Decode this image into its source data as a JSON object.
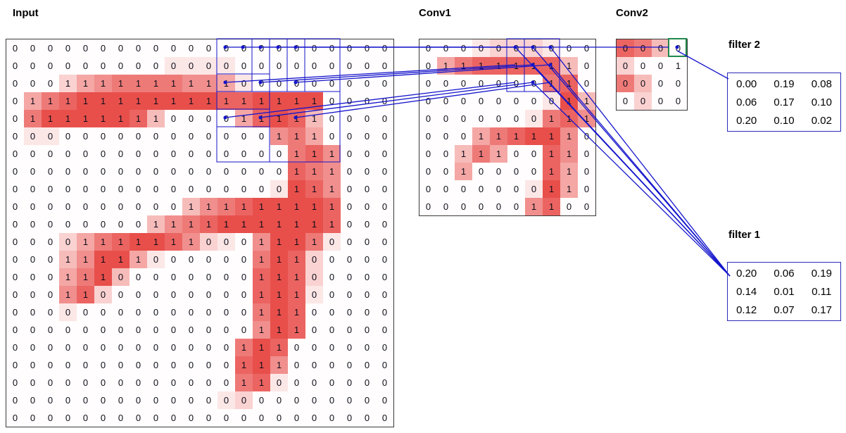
{
  "colors": {
    "accent_blue": "#1414cc",
    "cell_red_rgb": "229,57,53",
    "green_highlight": "#1f8a4c",
    "grid_border": "#3a3a3a"
  },
  "panels": {
    "input": {
      "title": "Input",
      "rows": [
        "0000000000000000000000",
        "0000000000000000000000",
        "0001111111111000000000",
        "0111111111111111110000",
        "0111111110000111110000",
        "0000000000000001110000",
        "0000000000000000111000",
        "0000000000000000111000",
        "0000000000000000111000",
        "0000000000111111111000",
        "0000000011111111111000",
        "0000111111100011110000",
        "0001111100000011100000",
        "0001110000000011100000",
        "0001100000000011100000",
        "0000000000000011100000",
        "0000000000000011100000",
        "0000000000000111000000",
        "0000000000000111000000",
        "0000000000000110000000",
        "0000000000000000000000",
        "0000000000000000000000"
      ],
      "intensity": [
        "0000000000000000000000",
        "0000000001111000000000",
        "0002456666554100000000",
        "0467888888887788880000",
        "0688888730000478730000",
        "0110000000000005640000",
        "0000000000000000675000",
        "0000000000000000765000",
        "0000000000000001875000",
        "0000000000356788887000",
        "0000000035678888887000",
        "0002467887521058861000",
        "0003588410000068720000",
        "0004683000000078720000",
        "0005720000000078710000",
        "0001000000000068700000",
        "0000000000000058700000",
        "0000000000000687000000",
        "0000000000000785000000",
        "0000000000000671000000",
        "0000000000001200000000",
        "0000000000000000000000"
      ]
    },
    "conv1": {
      "title": "Conv1",
      "rows": [
        "0000000000",
        "0111111110",
        "0000000110",
        "0000000011",
        "0000000111",
        "0001111110",
        "0011100110",
        "0010000110",
        "0000000110",
        "0000001100"
      ],
      "intensity": [
        "0001222100",
        "0467777730",
        "0000000670",
        "0000000183",
        "0000001675",
        "0004678850",
        "0036400750",
        "0040000740",
        "0000001840",
        "0000005700"
      ]
    },
    "conv2": {
      "title": "Conv2",
      "rows": [
        "0000",
        "0001",
        "0000",
        "0000"
      ],
      "intensity": [
        "7630",
        "2000",
        "6300",
        "0200"
      ]
    }
  },
  "filters": {
    "filter2": {
      "label": "filter 2",
      "values": [
        [
          "0.00",
          "0.19",
          "0.08"
        ],
        [
          "0.06",
          "0.17",
          "0.10"
        ],
        [
          "0.20",
          "0.10",
          "0.02"
        ]
      ]
    },
    "filter1": {
      "label": "filter 1",
      "values": [
        [
          "0.20",
          "0.06",
          "0.19"
        ],
        [
          "0.14",
          "0.01",
          "0.11"
        ],
        [
          "0.12",
          "0.07",
          "0.17"
        ]
      ]
    }
  }
}
